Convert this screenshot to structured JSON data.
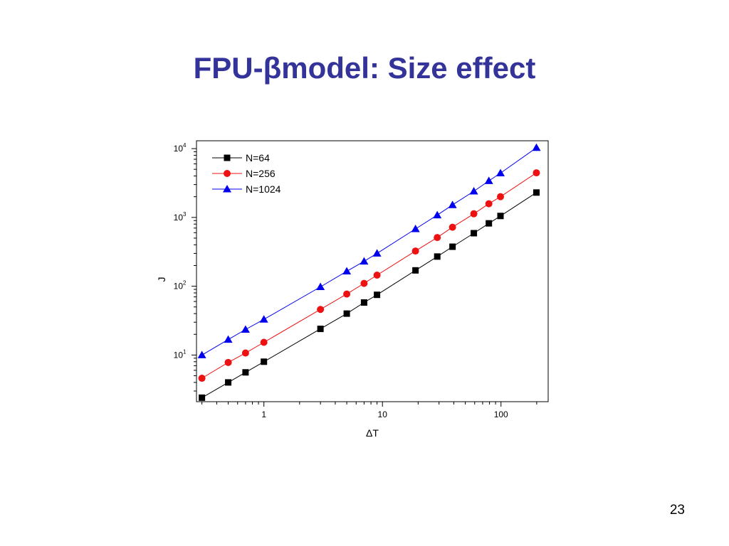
{
  "slide": {
    "title": "FPU-βmodel: Size effect",
    "page_number": "23"
  },
  "chart_data": {
    "type": "line",
    "xlabel": "ΔT",
    "ylabel": "J",
    "x_scale": "log",
    "y_scale": "log",
    "xlim": [
      0.27,
      250
    ],
    "ylim": [
      2.1,
      13000
    ],
    "x_ticks": [
      {
        "value": 1,
        "label": "1"
      },
      {
        "value": 10,
        "label": "10"
      },
      {
        "value": 100,
        "label": "100"
      }
    ],
    "y_ticks": [
      {
        "value": 10,
        "base": "10",
        "exp": "1"
      },
      {
        "value": 100,
        "base": "10",
        "exp": "2"
      },
      {
        "value": 1000,
        "base": "10",
        "exp": "3"
      },
      {
        "value": 10000,
        "base": "10",
        "exp": "4"
      }
    ],
    "grid": false,
    "legend_position": "top-left",
    "series": [
      {
        "name": "N=64",
        "color": "#000000",
        "marker": "square",
        "points": [
          [
            0.3,
            2.4
          ],
          [
            0.5,
            4.0
          ],
          [
            0.7,
            5.6
          ],
          [
            1,
            8.0
          ],
          [
            3,
            24
          ],
          [
            5,
            40
          ],
          [
            7,
            58
          ],
          [
            9,
            75
          ],
          [
            19,
            170
          ],
          [
            29,
            270
          ],
          [
            39,
            375
          ],
          [
            59,
            590
          ],
          [
            79,
            820
          ],
          [
            99,
            1050
          ],
          [
            199,
            2300
          ]
        ]
      },
      {
        "name": "N=256",
        "color": "#ee1111",
        "marker": "circle",
        "points": [
          [
            0.3,
            4.6
          ],
          [
            0.5,
            7.8
          ],
          [
            0.7,
            10.7
          ],
          [
            1,
            15.3
          ],
          [
            3,
            46
          ],
          [
            5,
            77
          ],
          [
            7,
            110
          ],
          [
            9,
            145
          ],
          [
            19,
            325
          ],
          [
            29,
            510
          ],
          [
            39,
            720
          ],
          [
            59,
            1130
          ],
          [
            79,
            1580
          ],
          [
            99,
            2000
          ],
          [
            199,
            4450
          ]
        ]
      },
      {
        "name": "N=1024",
        "color": "#0000ee",
        "marker": "triangle",
        "points": [
          [
            0.3,
            10
          ],
          [
            0.5,
            16.8
          ],
          [
            0.7,
            23.5
          ],
          [
            1,
            33
          ],
          [
            3,
            98
          ],
          [
            5,
            165
          ],
          [
            7,
            230
          ],
          [
            9,
            300
          ],
          [
            19,
            680
          ],
          [
            29,
            1080
          ],
          [
            39,
            1520
          ],
          [
            59,
            2400
          ],
          [
            79,
            3400
          ],
          [
            99,
            4400
          ],
          [
            199,
            10300
          ]
        ]
      }
    ]
  }
}
